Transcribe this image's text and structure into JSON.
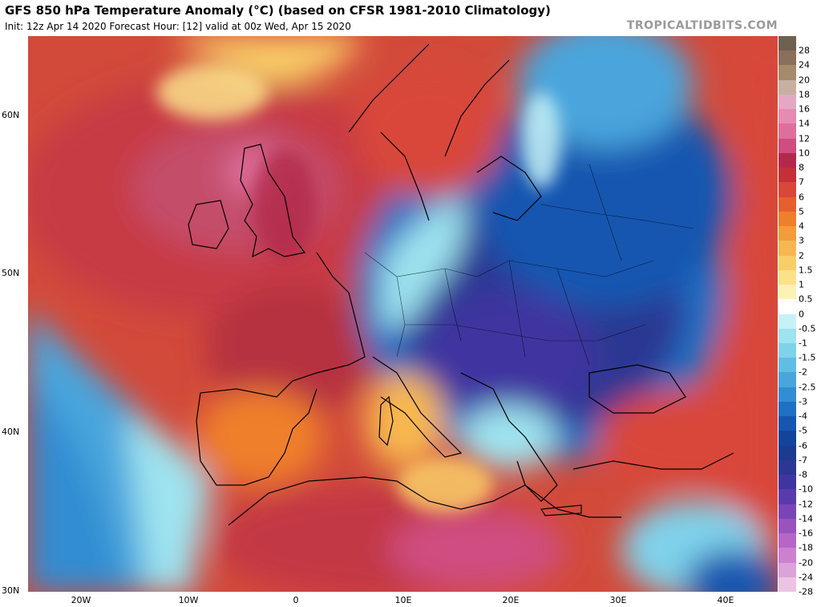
{
  "header": {
    "title": "GFS 850 hPa Temperature Anomaly (°C) (based on CFSR 1981-2010 Climatology)",
    "subtitle": "Init: 12z Apr 14 2020   Forecast Hour: [12]   valid at 00z Wed, Apr 15 2020",
    "source": "TROPICALTIDBITS.COM"
  },
  "axes": {
    "lat_labels": [
      "60N",
      "50N",
      "40N",
      "30N"
    ],
    "lon_labels": [
      "20W",
      "10W",
      "0",
      "10E",
      "20E",
      "30E",
      "40E"
    ]
  },
  "colorbar": {
    "labels": [
      "28",
      "24",
      "20",
      "18",
      "16",
      "14",
      "12",
      "10",
      "8",
      "7",
      "6",
      "5",
      "4",
      "3",
      "2",
      "1.5",
      "1",
      "0.5",
      "0",
      "-0.5",
      "-1",
      "-1.5",
      "-2",
      "-2.5",
      "-3",
      "-4",
      "-5",
      "-6",
      "-7",
      "-8",
      "-10",
      "-12",
      "-14",
      "-16",
      "-18",
      "-20",
      "-24",
      "-28"
    ],
    "colors": [
      "#6e6150",
      "#8a6f5a",
      "#a58a6c",
      "#c8b0a0",
      "#e3a8c4",
      "#e68bb3",
      "#de6f9c",
      "#cf4d80",
      "#b3294c",
      "#c33038",
      "#d9463a",
      "#e6602f",
      "#ef7f2b",
      "#f39c39",
      "#f7b750",
      "#f9cd68",
      "#fbe18a",
      "#fdf2b4",
      "#ffffff",
      "#c6f2f6",
      "#9ee3ef",
      "#7fd2ea",
      "#62bde4",
      "#4aa5dc",
      "#338dd2",
      "#2070c4",
      "#1756b0",
      "#13449b",
      "#1c3a8f",
      "#2b3793",
      "#3f35a0",
      "#5a3aae",
      "#7a44b8",
      "#9953bf",
      "#b566c7",
      "#cd80cf",
      "#dca3d8",
      "#eac4e2"
    ]
  }
}
